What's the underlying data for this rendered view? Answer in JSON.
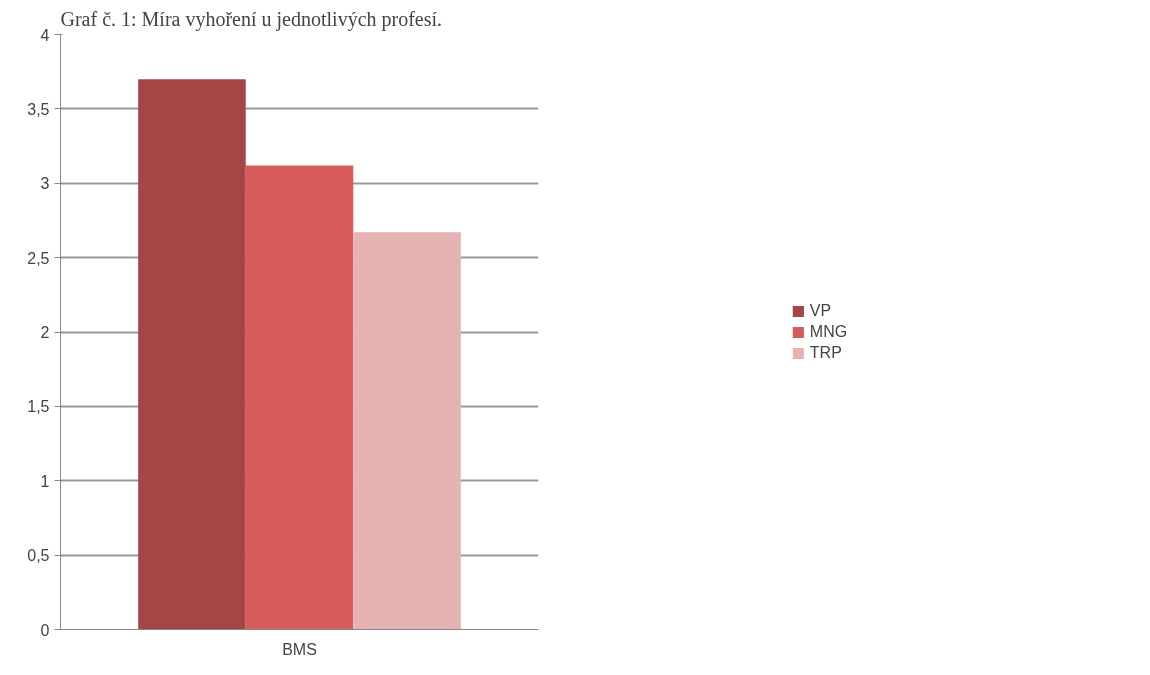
{
  "chart_data": {
    "type": "bar",
    "title": "Graf č. 1: Míra vyhoření u jednotlivých profesí.",
    "categories": [
      "BMS"
    ],
    "series": [
      {
        "name": "VP",
        "color": "#a54545",
        "values": [
          3.7
        ]
      },
      {
        "name": "MNG",
        "color": "#d65c5c",
        "values": [
          3.12
        ]
      },
      {
        "name": "TRP",
        "color": "#e6b3b3",
        "values": [
          2.67
        ]
      }
    ],
    "ylim": [
      0,
      4
    ],
    "yticks": [
      {
        "value": 0,
        "label": "0"
      },
      {
        "value": 0.5,
        "label": "0,5"
      },
      {
        "value": 1,
        "label": "1"
      },
      {
        "value": 1.5,
        "label": "1,5"
      },
      {
        "value": 2,
        "label": "2"
      },
      {
        "value": 2.5,
        "label": "2,5"
      },
      {
        "value": 3,
        "label": "3"
      },
      {
        "value": 3.5,
        "label": "3,5"
      },
      {
        "value": 4,
        "label": "4"
      }
    ],
    "grid": "y",
    "legend": "right"
  }
}
